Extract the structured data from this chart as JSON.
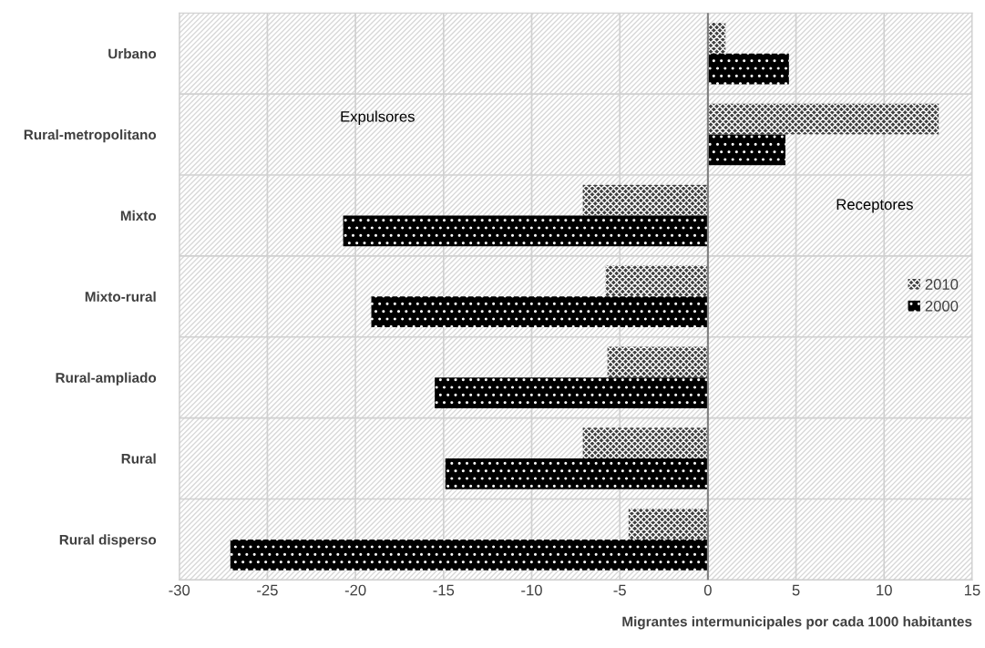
{
  "chart_data": {
    "type": "bar",
    "orientation": "horizontal",
    "xlabel": "Migrantes intermunicipales por cada 1000 habitantes",
    "categories": [
      "Urbano",
      "Rural-metropolitano",
      "Mixto",
      "Mixto-rural",
      "Rural-ampliado",
      "Rural",
      "Rural disperso"
    ],
    "series": [
      {
        "name": "2010",
        "color": "#404040",
        "values": [
          1.0,
          13.1,
          -7.1,
          -5.8,
          -5.7,
          -7.1,
          -4.5
        ]
      },
      {
        "name": "2000",
        "color": "#000000",
        "values": [
          4.6,
          4.4,
          -20.7,
          -19.1,
          -15.5,
          -14.9,
          -27.1
        ]
      }
    ],
    "xlim": [
      -30,
      15
    ],
    "xticks": [
      -30,
      -25,
      -20,
      -15,
      -10,
      -5,
      0,
      5,
      10,
      15
    ],
    "annotations": [
      "Expulsores",
      "Receptores"
    ],
    "grid": true,
    "legend": "right"
  }
}
